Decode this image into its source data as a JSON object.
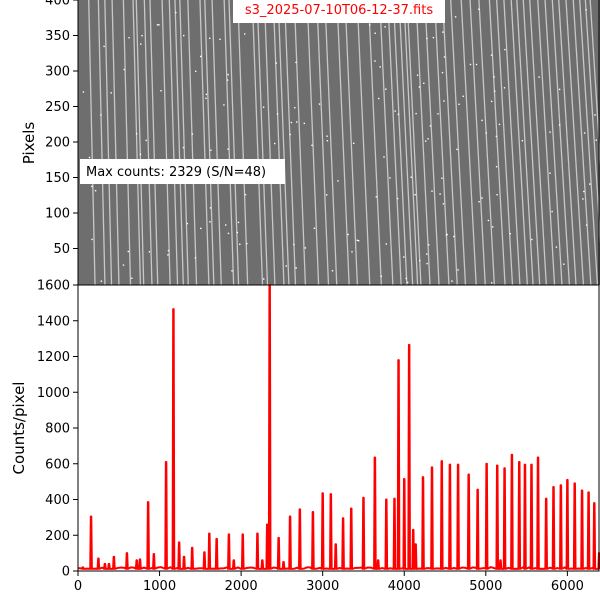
{
  "chart_data": [
    {
      "type": "heatmap",
      "panel": "image",
      "title": "s3_2025-07-10T06-12-37.fits",
      "title_color": "#ff0000",
      "ylabel": "Pixels",
      "xlim": [
        0,
        6400
      ],
      "ylim": [
        0,
        400
      ],
      "yticks": [
        50,
        100,
        150,
        200,
        250,
        300,
        350,
        400
      ],
      "annotation": "Max counts: 2329 (S/N=48)",
      "colormap": "gray",
      "background_color": "#6e6e6e",
      "line_positions": [
        170,
        290,
        370,
        460,
        600,
        720,
        760,
        860,
        930,
        1080,
        1170,
        1240,
        1300,
        1400,
        1550,
        1610,
        1700,
        1850,
        1910,
        2020,
        2200,
        2260,
        2350,
        2460,
        2520,
        2600,
        2720,
        2880,
        3000,
        3100,
        3250,
        3350,
        3500,
        3640,
        3780,
        3880,
        3950,
        4020,
        4080,
        4120,
        4230,
        4340,
        4460,
        4560,
        4660,
        4790,
        4900,
        5010,
        5140,
        5230,
        5320,
        5410,
        5480,
        5560,
        5640,
        5740,
        5830,
        5920,
        6000,
        6090,
        6180,
        6260,
        6330,
        6390
      ]
    },
    {
      "type": "line",
      "panel": "spectrum",
      "xlabel": "",
      "ylabel": "Counts/pixel",
      "xlim": [
        0,
        6400
      ],
      "ylim": [
        0,
        1600
      ],
      "xticks": [
        0,
        1000,
        2000,
        3000,
        4000,
        5000,
        6000
      ],
      "yticks": [
        0,
        200,
        400,
        600,
        800,
        1000,
        1200,
        1400,
        1600
      ],
      "color": "#ff0000",
      "baseline": 12,
      "peaks": [
        [
          60,
          20
        ],
        [
          160,
          305
        ],
        [
          250,
          70
        ],
        [
          330,
          40
        ],
        [
          380,
          40
        ],
        [
          440,
          80
        ],
        [
          600,
          100
        ],
        [
          720,
          60
        ],
        [
          760,
          65
        ],
        [
          860,
          385
        ],
        [
          930,
          95
        ],
        [
          1080,
          610
        ],
        [
          1170,
          1465
        ],
        [
          1240,
          160
        ],
        [
          1300,
          80
        ],
        [
          1400,
          130
        ],
        [
          1550,
          105
        ],
        [
          1610,
          210
        ],
        [
          1700,
          180
        ],
        [
          1850,
          205
        ],
        [
          1910,
          60
        ],
        [
          2020,
          205
        ],
        [
          2200,
          210
        ],
        [
          2260,
          60
        ],
        [
          2320,
          260
        ],
        [
          2350,
          1600
        ],
        [
          2460,
          185
        ],
        [
          2520,
          50
        ],
        [
          2600,
          305
        ],
        [
          2720,
          345
        ],
        [
          2880,
          330
        ],
        [
          3000,
          435
        ],
        [
          3100,
          430
        ],
        [
          3160,
          150
        ],
        [
          3250,
          295
        ],
        [
          3350,
          350
        ],
        [
          3500,
          410
        ],
        [
          3640,
          635
        ],
        [
          3680,
          60
        ],
        [
          3780,
          400
        ],
        [
          3880,
          405
        ],
        [
          3930,
          1180
        ],
        [
          4000,
          515
        ],
        [
          4060,
          1265
        ],
        [
          4110,
          230
        ],
        [
          4140,
          150
        ],
        [
          4230,
          525
        ],
        [
          4340,
          580
        ],
        [
          4460,
          615
        ],
        [
          4560,
          595
        ],
        [
          4660,
          595
        ],
        [
          4790,
          540
        ],
        [
          4900,
          455
        ],
        [
          5010,
          600
        ],
        [
          5140,
          590
        ],
        [
          5180,
          60
        ],
        [
          5230,
          575
        ],
        [
          5320,
          650
        ],
        [
          5410,
          610
        ],
        [
          5480,
          595
        ],
        [
          5560,
          595
        ],
        [
          5640,
          635
        ],
        [
          5740,
          405
        ],
        [
          5830,
          470
        ],
        [
          5920,
          480
        ],
        [
          6000,
          510
        ],
        [
          6090,
          490
        ],
        [
          6180,
          450
        ],
        [
          6260,
          440
        ],
        [
          6330,
          380
        ],
        [
          6390,
          100
        ]
      ]
    }
  ]
}
